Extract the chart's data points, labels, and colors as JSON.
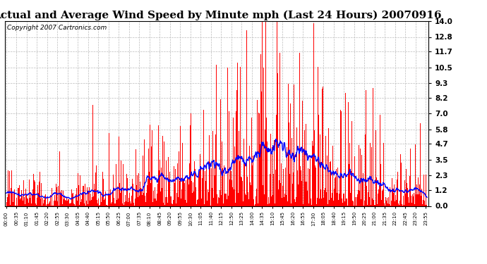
{
  "title": "Actual and Average Wind Speed by Minute mph (Last 24 Hours) 20070916",
  "copyright": "Copyright 2007 Cartronics.com",
  "yticks": [
    0.0,
    1.2,
    2.3,
    3.5,
    4.7,
    5.8,
    7.0,
    8.2,
    9.3,
    10.5,
    11.7,
    12.8,
    14.0
  ],
  "ylim": [
    0.0,
    14.0
  ],
  "bar_color": "#FF0000",
  "line_color": "#0000FF",
  "background_color": "#FFFFFF",
  "plot_bg_color": "#FFFFFF",
  "grid_color": "#BBBBBB",
  "title_fontsize": 11,
  "copyright_fontsize": 6.5,
  "xtick_step_minutes": 35,
  "xtick_start": 0
}
